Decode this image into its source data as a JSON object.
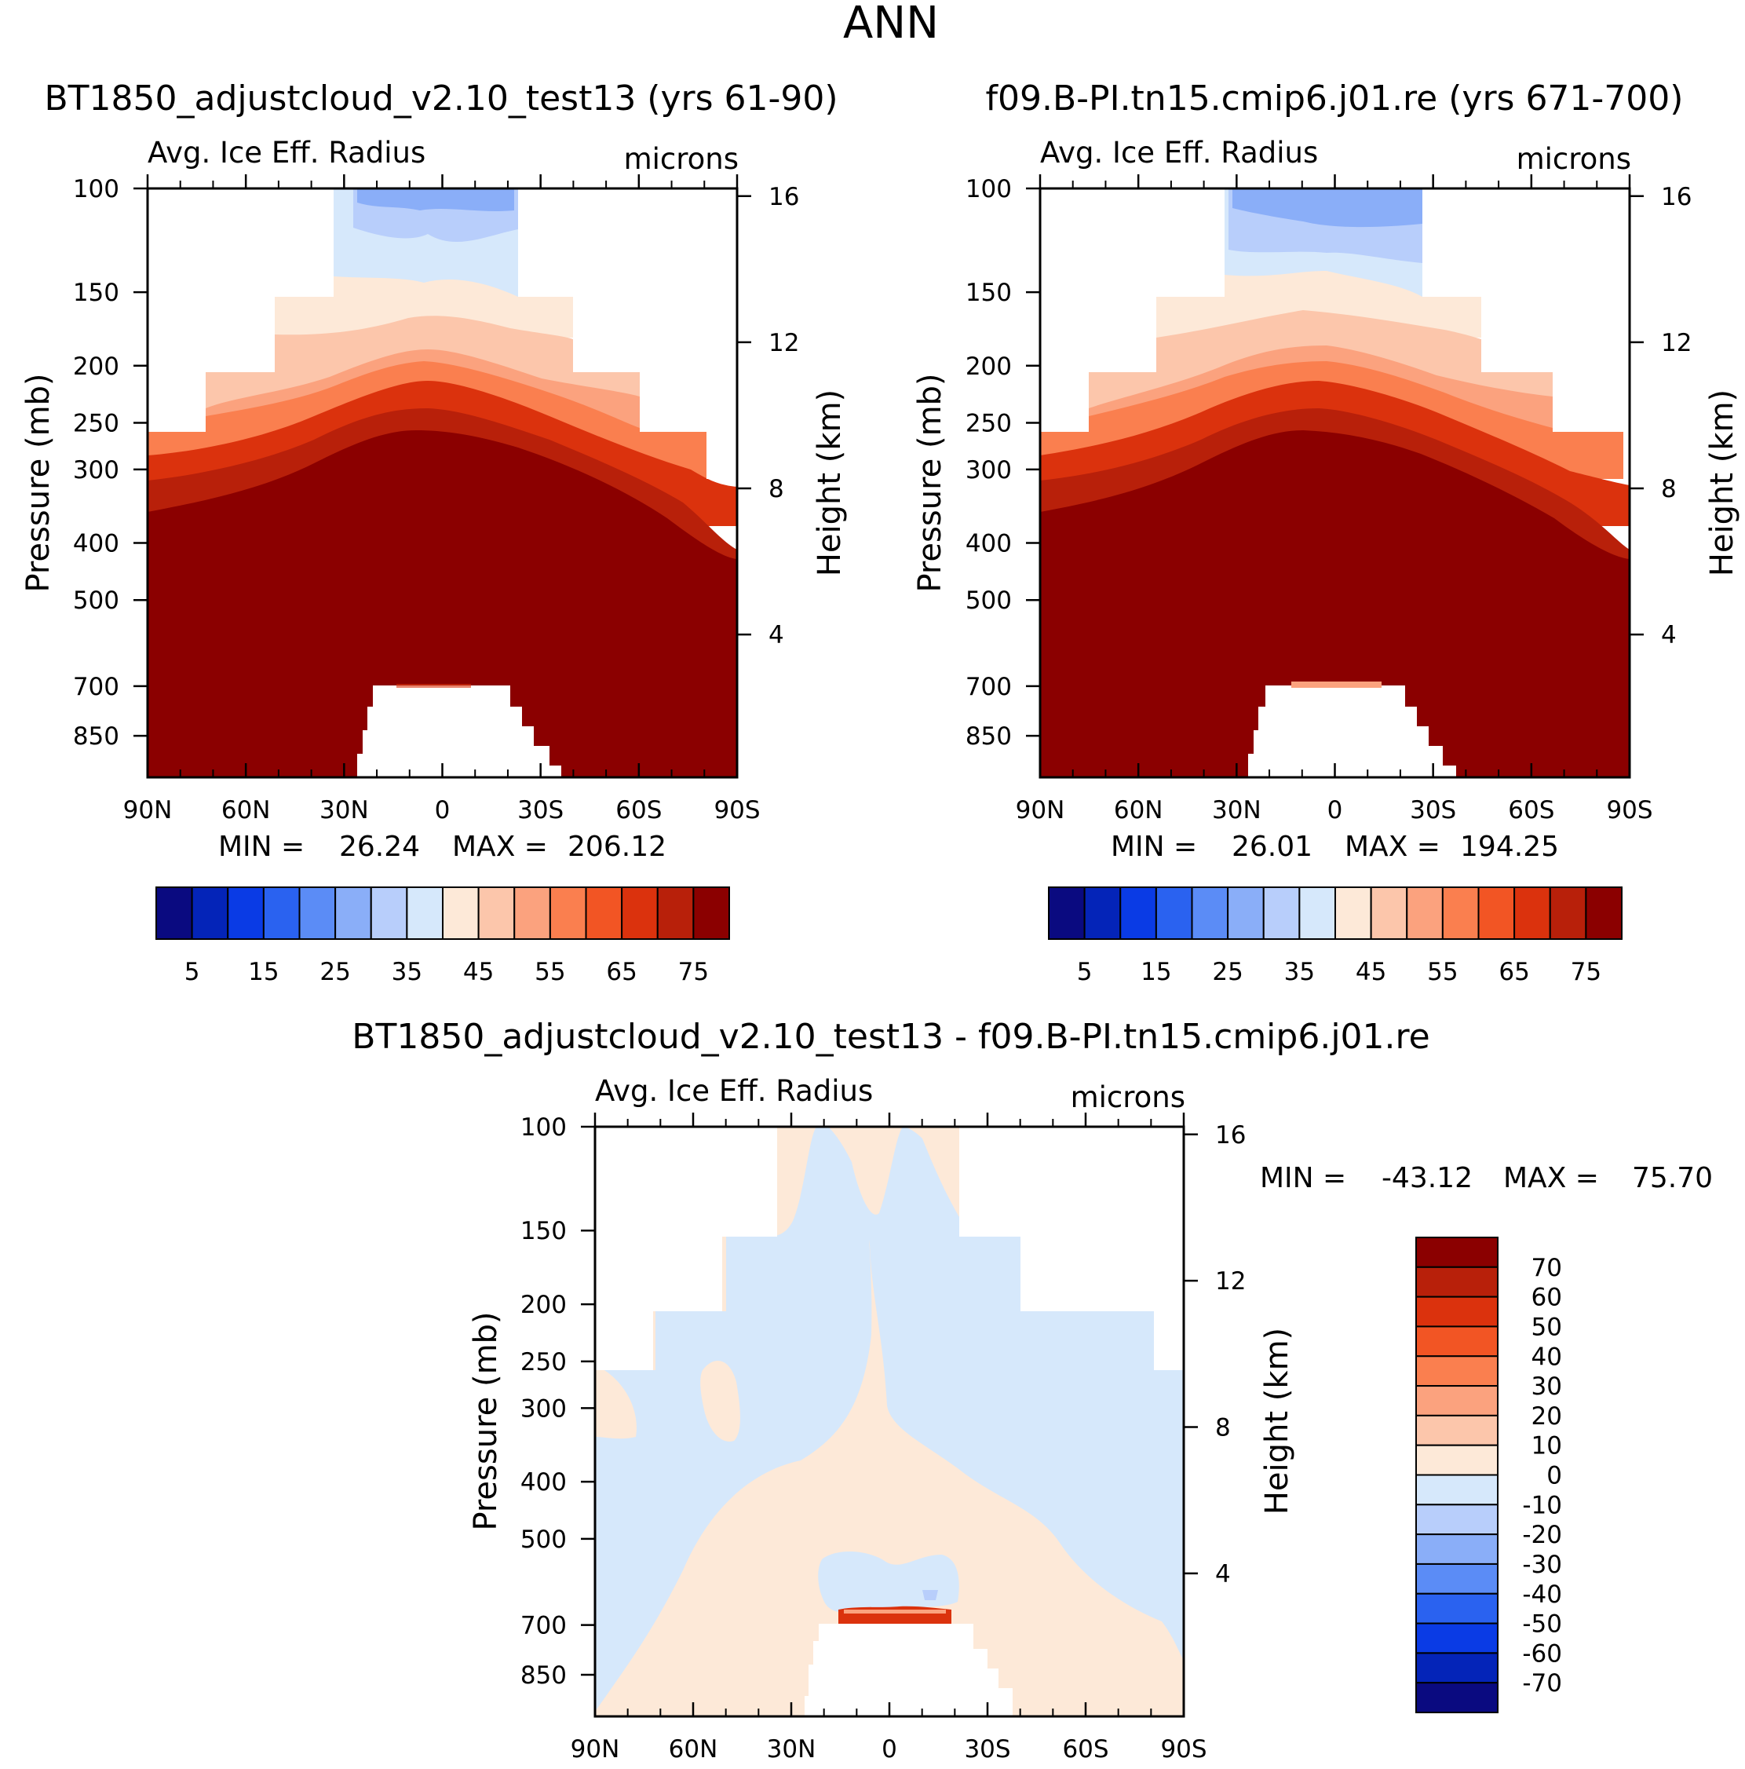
{
  "page_title": "ANN",
  "chart_data": [
    {
      "type": "heatmap",
      "case_title": "BT1850_adjustcloud_v2.10_test13 (yrs 61-90)",
      "variable": "Avg. Ice Eff. Radius",
      "units": "microns",
      "ylabel": "Pressure (mb)",
      "ylabel_right": "Height (km)",
      "x_ticks": [
        "90N",
        "60N",
        "30N",
        "0",
        "30S",
        "60S",
        "90S"
      ],
      "y_ticks": [
        "100",
        "150",
        "200",
        "250",
        "300",
        "400",
        "500",
        "700",
        "850"
      ],
      "y_ticks_right": [
        "16",
        "12",
        "8",
        "4"
      ],
      "stats": {
        "min_label": "MIN =",
        "min": "26.24",
        "max_label": "MAX =",
        "max": "206.12"
      },
      "colorbar": {
        "orientation": "horizontal",
        "labels": [
          "5",
          "15",
          "25",
          "35",
          "45",
          "55",
          "65",
          "75"
        ],
        "colors": [
          "#0a0a80",
          "#0424b8",
          "#0a3be5",
          "#2a62f0",
          "#5b8cf6",
          "#8aaef8",
          "#b8cefb",
          "#d6e8fb",
          "#fde9d8",
          "#fcc6ab",
          "#fba27e",
          "#fa7f4f",
          "#f25524",
          "#db320d",
          "#b8200a",
          "#8b0000"
        ]
      }
    },
    {
      "type": "heatmap",
      "case_title": "f09.B-PI.tn15.cmip6.j01.re (yrs 671-700)",
      "variable": "Avg. Ice Eff. Radius",
      "units": "microns",
      "ylabel": "Pressure (mb)",
      "ylabel_right": "Height (km)",
      "x_ticks": [
        "90N",
        "60N",
        "30N",
        "0",
        "30S",
        "60S",
        "90S"
      ],
      "y_ticks": [
        "100",
        "150",
        "200",
        "250",
        "300",
        "400",
        "500",
        "700",
        "850"
      ],
      "y_ticks_right": [
        "16",
        "12",
        "8",
        "4"
      ],
      "stats": {
        "min_label": "MIN =",
        "min": "26.01",
        "max_label": "MAX =",
        "max": "194.25"
      },
      "colorbar": {
        "orientation": "horizontal",
        "labels": [
          "5",
          "15",
          "25",
          "35",
          "45",
          "55",
          "65",
          "75"
        ],
        "colors": [
          "#0a0a80",
          "#0424b8",
          "#0a3be5",
          "#2a62f0",
          "#5b8cf6",
          "#8aaef8",
          "#b8cefb",
          "#d6e8fb",
          "#fde9d8",
          "#fcc6ab",
          "#fba27e",
          "#fa7f4f",
          "#f25524",
          "#db320d",
          "#b8200a",
          "#8b0000"
        ]
      }
    },
    {
      "type": "heatmap",
      "case_title": "BT1850_adjustcloud_v2.10_test13 - f09.B-PI.tn15.cmip6.j01.re",
      "variable": "Avg. Ice Eff. Radius",
      "units": "microns",
      "ylabel": "Pressure (mb)",
      "ylabel_right": "Height (km)",
      "x_ticks": [
        "90N",
        "60N",
        "30N",
        "0",
        "30S",
        "60S",
        "90S"
      ],
      "y_ticks": [
        "100",
        "150",
        "200",
        "250",
        "300",
        "400",
        "500",
        "700",
        "850"
      ],
      "y_ticks_right": [
        "16",
        "12",
        "8",
        "4"
      ],
      "stats": {
        "min_label": "MIN =",
        "min": "-43.12",
        "max_label": "MAX =",
        "max": "75.70"
      },
      "colorbar": {
        "orientation": "vertical",
        "labels": [
          "70",
          "60",
          "50",
          "40",
          "30",
          "20",
          "10",
          "0",
          "-10",
          "-20",
          "-30",
          "-40",
          "-50",
          "-60",
          "-70"
        ],
        "colors": [
          "#8b0000",
          "#b8200a",
          "#db320d",
          "#f25524",
          "#fa7f4f",
          "#fba27e",
          "#fcc6ab",
          "#fde9d8",
          "#d6e8fb",
          "#b8cefb",
          "#8aaef8",
          "#5b8cf6",
          "#2a62f0",
          "#0a3be5",
          "#0424b8",
          "#0a0a80"
        ]
      }
    }
  ]
}
